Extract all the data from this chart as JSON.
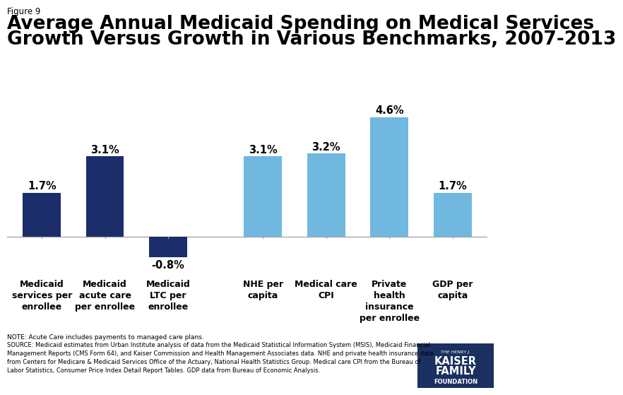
{
  "values": [
    1.7,
    3.1,
    -0.8,
    3.1,
    3.2,
    4.6,
    1.7
  ],
  "bar_colors": [
    "#1b2d6b",
    "#1b2d6b",
    "#1b2d6b",
    "#70b8e0",
    "#70b8e0",
    "#70b8e0",
    "#70b8e0"
  ],
  "value_labels": [
    "1.7%",
    "3.1%",
    "-0.8%",
    "3.1%",
    "3.2%",
    "4.6%",
    "1.7%"
  ],
  "x_positions": [
    0,
    1,
    2,
    3.5,
    4.5,
    5.5,
    6.5
  ],
  "cat_labels": [
    "Medicaid\nservices per\nenrollee",
    "Medicaid\nacute care\nper enrollee",
    "Medicaid\nLTC per\nenrollee",
    "NHE per\ncapita",
    "Medical care\nCPI",
    "Private\nhealth\ninsurance\nper enrollee",
    "GDP per\ncapita"
  ],
  "figure_label": "Figure 9",
  "title_line1": "Average Annual Medicaid Spending on Medical Services",
  "title_line2": "Growth Versus Growth in Various Benchmarks, 2007-2013",
  "note_line1": "NOTE: Acute Care includes payments to managed care plans.",
  "source_text": "SOURCE: Medicaid estimates from Urban Institute analysis of data from the Medicaid Statistical Information System (MSIS), Medicaid Financial\nManagement Reports (CMS Form 64), and Kaiser Commission and Health Management Associates data. NHE and private health insurance data\nfrom Centers for Medicare & Medicaid Services Office of the Actuary, National Health Statistics Group. Medical care CPI from the Bureau of\nLabor Statistics, Consumer Price Index Detail Report Tables. GDP data from Bureau of Economic Analysis.",
  "ylim": [
    -1.4,
    5.5
  ],
  "xlim": [
    -0.55,
    7.05
  ],
  "bar_width": 0.6,
  "background_color": "#ffffff",
  "title_fontsize": 19,
  "label_fontsize": 9,
  "value_fontsize": 10.5,
  "logo_color": "#1a3060",
  "axis_line_color": "#a0a0a0"
}
